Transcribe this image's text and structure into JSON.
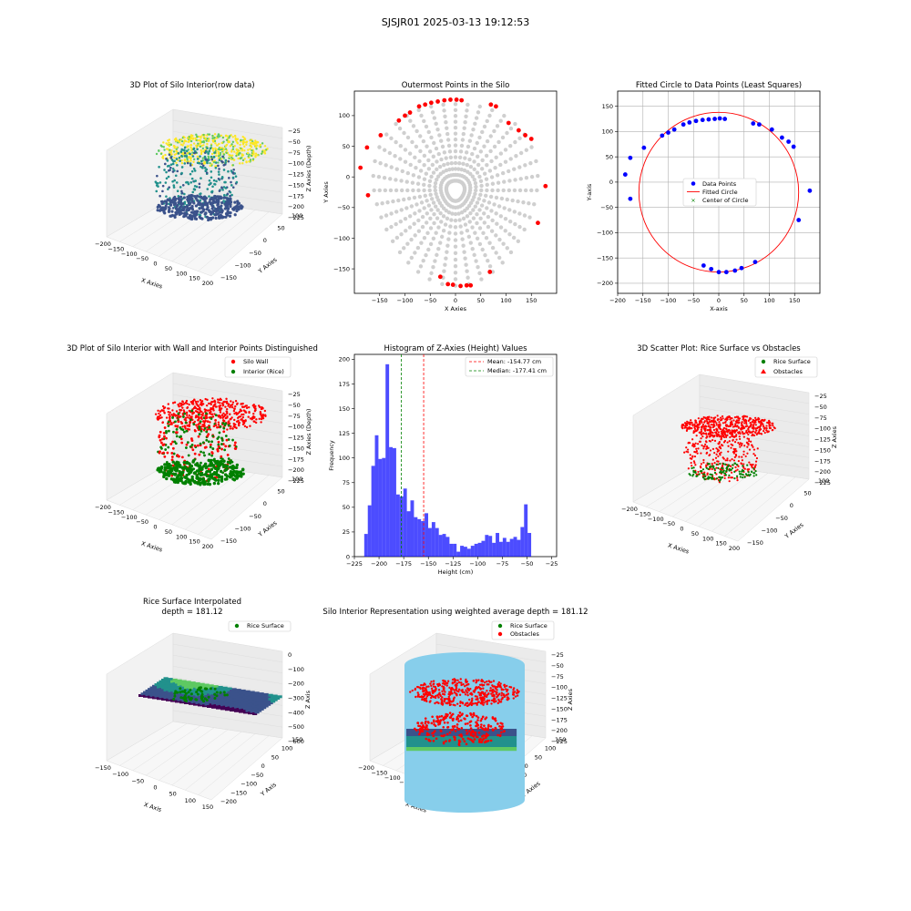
{
  "suptitle": "SJSJR01 2025-03-13 19:12:53",
  "colors": {
    "viridis": [
      "#440154",
      "#3b528b",
      "#21918c",
      "#5ec962",
      "#fde725"
    ],
    "gray_pts": "#cfcfcf",
    "red": "#ff0000",
    "blue": "#0000ff",
    "green": "#008000",
    "hist": "#0000ff",
    "silo": "#87ceeb"
  },
  "chart_data": [
    {
      "id": "p1",
      "type": "scatter",
      "title": "3D Plot of Silo Interior(row data)",
      "xlabel": "X Axies",
      "ylabel": "Y Axies",
      "zlabel": "Z Axies (Depth)",
      "xticks": [
        "-200",
        "-150",
        "-100",
        "-50",
        "0",
        "50",
        "100",
        "150",
        "200"
      ],
      "yticks": [
        "-150",
        "-100",
        "-50",
        "0",
        "50",
        "100"
      ],
      "zticks": [
        "-25",
        "-50",
        "-75",
        "-100",
        "-125",
        "-150",
        "-175",
        "-200",
        "-225"
      ]
    },
    {
      "id": "p2",
      "type": "scatter",
      "title": "Outermost Points in the Silo",
      "xlabel": "X Axies",
      "ylabel": "Y Axies",
      "xlim": [
        -200,
        200
      ],
      "ylim": [
        -190,
        140
      ],
      "xticks": [
        -150,
        -100,
        -50,
        0,
        50,
        100,
        150
      ],
      "yticks": [
        -150,
        -100,
        -50,
        0,
        50,
        100
      ],
      "outer_points": [
        [
          -188,
          15
        ],
        [
          -175,
          48
        ],
        [
          -173,
          -30
        ],
        [
          -148,
          68
        ],
        [
          -112,
          92
        ],
        [
          -100,
          100
        ],
        [
          -90,
          105
        ],
        [
          -72,
          115
        ],
        [
          -60,
          118
        ],
        [
          -48,
          121
        ],
        [
          -35,
          123
        ],
        [
          -22,
          125
        ],
        [
          -10,
          126
        ],
        [
          2,
          126
        ],
        [
          12,
          125
        ],
        [
          70,
          118
        ],
        [
          80,
          115
        ],
        [
          105,
          88
        ],
        [
          125,
          76
        ],
        [
          138,
          68
        ],
        [
          150,
          62
        ],
        [
          178,
          -15
        ],
        [
          163,
          -75
        ],
        [
          68,
          -155
        ],
        [
          30,
          -177
        ],
        [
          -30,
          -163
        ],
        [
          -15,
          -175
        ],
        [
          -5,
          -176
        ],
        [
          10,
          -178
        ],
        [
          22,
          -177
        ]
      ]
    },
    {
      "id": "p3",
      "type": "scatter",
      "title": "Fitted Circle to Data Points (Least Squares)",
      "xlabel": "X-axis",
      "ylabel": "Y-axis",
      "xlim": [
        -200,
        200
      ],
      "ylim": [
        -220,
        180
      ],
      "xticks": [
        -200,
        -150,
        -100,
        -50,
        0,
        50,
        100,
        150
      ],
      "yticks": [
        -200,
        -150,
        -100,
        -50,
        0,
        50,
        100,
        150
      ],
      "circle": {
        "cx": 0,
        "cy": -20,
        "r": 158
      },
      "points": [
        [
          -185,
          15
        ],
        [
          -175,
          48
        ],
        [
          -175,
          -33
        ],
        [
          -148,
          68
        ],
        [
          -112,
          92
        ],
        [
          -100,
          98
        ],
        [
          -88,
          104
        ],
        [
          -70,
          114
        ],
        [
          -58,
          118
        ],
        [
          -45,
          121
        ],
        [
          -32,
          123
        ],
        [
          -20,
          124
        ],
        [
          -8,
          125
        ],
        [
          2,
          126
        ],
        [
          12,
          125
        ],
        [
          68,
          116
        ],
        [
          80,
          114
        ],
        [
          105,
          104
        ],
        [
          125,
          88
        ],
        [
          138,
          80
        ],
        [
          148,
          70
        ],
        [
          180,
          -17
        ],
        [
          158,
          -75
        ],
        [
          72,
          -158
        ],
        [
          45,
          -170
        ],
        [
          32,
          -175
        ],
        [
          15,
          -178
        ],
        [
          0,
          -178
        ],
        [
          -15,
          -172
        ],
        [
          -30,
          -165
        ]
      ],
      "legend": [
        "Data Points",
        "Fitted Circle",
        "Center of Circle"
      ]
    },
    {
      "id": "p4",
      "type": "scatter",
      "title": "3D Plot of Silo Interior with Wall and Interior Points Distinguished",
      "xlabel": "X Axies",
      "ylabel": "Y Axies",
      "zlabel": "Z Axies (Depth)",
      "xticks": [
        "-200",
        "-150",
        "-100",
        "-50",
        "0",
        "50",
        "100",
        "150",
        "200"
      ],
      "yticks": [
        "-150",
        "-100",
        "-50",
        "0",
        "50",
        "100"
      ],
      "zticks": [
        "-25",
        "-50",
        "-75",
        "-100",
        "-125",
        "-150",
        "-175",
        "-200",
        "-225"
      ],
      "legend": [
        "Silo Wall",
        "Interior (Rice)"
      ]
    },
    {
      "id": "p5",
      "type": "bar",
      "title": "Histogram of Z-Axies (Height) Values",
      "xlabel": "Height (cm)",
      "ylabel": "Frequency",
      "xlim": [
        -225,
        -20
      ],
      "ylim": [
        0,
        205
      ],
      "xticks": [
        -225,
        -200,
        -175,
        -150,
        -125,
        -100,
        -75,
        -50,
        -25
      ],
      "yticks": [
        0,
        25,
        50,
        75,
        100,
        125,
        150,
        175,
        200
      ],
      "bin_start": -215,
      "bin_width": 3.6,
      "values": [
        23,
        52,
        92,
        123,
        99,
        100,
        195,
        111,
        110,
        63,
        61,
        69,
        46,
        57,
        40,
        38,
        36,
        44,
        29,
        35,
        29,
        22,
        23,
        20,
        13,
        13,
        5,
        11,
        10,
        8,
        11,
        13,
        14,
        16,
        22,
        21,
        14,
        24,
        15,
        19,
        15,
        18,
        20,
        17,
        30,
        53,
        24
      ],
      "mean": -154.77,
      "median": -177.41,
      "legend": [
        "Mean: -154.77 cm",
        "Median: -177.41 cm"
      ]
    },
    {
      "id": "p6",
      "type": "scatter",
      "title": "3D Scatter Plot: Rice Surface vs Obstacles",
      "xlabel": "X Axies",
      "ylabel": "Y Axies",
      "zlabel": "Z Axies",
      "xticks": [
        "-200",
        "-150",
        "-100",
        "-50",
        "0",
        "50",
        "100",
        "150",
        "200"
      ],
      "yticks": [
        "-150",
        "-100",
        "-50",
        "0",
        "50",
        "100"
      ],
      "zticks": [
        "-25",
        "-50",
        "-75",
        "-100",
        "-125",
        "-150",
        "-175",
        "-200",
        "-225"
      ],
      "legend": [
        "Rice Surface",
        "Obstacles"
      ]
    },
    {
      "id": "p7",
      "type": "scatter",
      "title": "Rice Surface Interpolated",
      "subtitle": "depth = 181.12",
      "xlabel": "X Axis",
      "ylabel": "Y Axis",
      "zlabel": "Z Axis",
      "xticks": [
        "-150",
        "-100",
        "-50",
        "0",
        "50",
        "100",
        "150"
      ],
      "yticks": [
        "-200",
        "-150",
        "-100",
        "-50",
        "0",
        "50",
        "100",
        "150"
      ],
      "zticks": [
        "0",
        "-100",
        "-200",
        "-300",
        "-400",
        "-500",
        "-600"
      ],
      "legend": [
        "Rice Surface"
      ]
    },
    {
      "id": "p8",
      "type": "scatter",
      "title": "Silo Interior Representation using weighted average depth = 181.12",
      "xlabel": "X Axies",
      "ylabel": "Y Axies",
      "zlabel": "Z Axies",
      "xticks": [
        "-200",
        "-150",
        "-100",
        "-50",
        "0",
        "50",
        "100",
        "150",
        "200"
      ],
      "yticks": [
        "-200",
        "-150",
        "-100",
        "-50",
        "0",
        "50",
        "100",
        "150"
      ],
      "zticks": [
        "-25",
        "-50",
        "-75",
        "-100",
        "-125",
        "-150",
        "-175",
        "-200",
        "-225"
      ],
      "legend": [
        "Rice Surface",
        "Obstacles"
      ]
    }
  ]
}
